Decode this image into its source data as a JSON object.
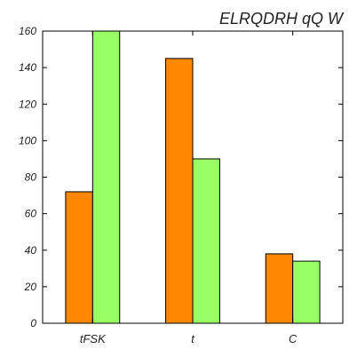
{
  "chart_data": {
    "type": "bar",
    "title": "ELRQDRH qQ W",
    "categories": [
      "tFSK",
      "t",
      "C"
    ],
    "series": [
      {
        "values": [
          72,
          145,
          38
        ],
        "color": "#ff8800"
      },
      {
        "values": [
          160,
          90,
          34
        ],
        "color": "#99ff66"
      }
    ],
    "ylim": [
      0,
      160
    ],
    "yticks": [
      0,
      20,
      40,
      60,
      80,
      100,
      120,
      140,
      160
    ],
    "grid": false
  }
}
